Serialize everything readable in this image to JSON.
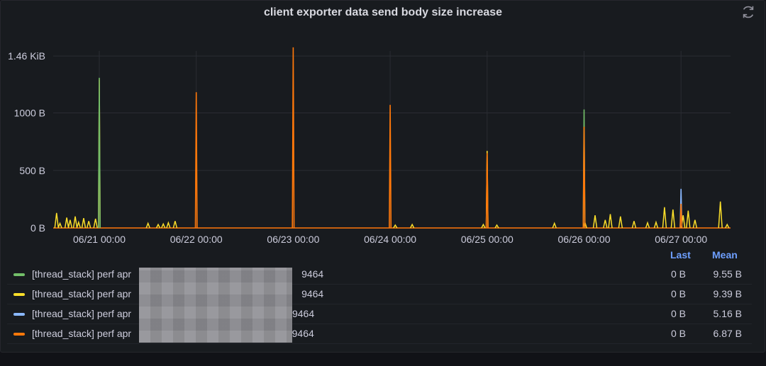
{
  "panel": {
    "title": "client exporter data send body size increase",
    "refresh_icon": "refresh-icon"
  },
  "chart_data": {
    "type": "line",
    "title": "client exporter data send body size increase",
    "xlabel": "",
    "ylabel": "",
    "x_tick_labels": [
      "06/21 00:00",
      "06/22 00:00",
      "06/23 00:00",
      "06/24 00:00",
      "06/25 00:00",
      "06/26 00:00",
      "06/27 00:00"
    ],
    "x_range": [
      "06/20 09:00",
      "06/27 16:00"
    ],
    "y_tick_labels": [
      "0 B",
      "500 B",
      "1000 B",
      "1.46 KiB"
    ],
    "y_tick_values": [
      0,
      500,
      1000,
      1495
    ],
    "ylim": [
      0,
      1600
    ],
    "grid": true,
    "legend_placement": "bottom",
    "series": [
      {
        "name": "[thread_stack] perf apr",
        "name_suffix": "9464",
        "color": "#73bf69",
        "points": [
          [
            0,
            0
          ],
          [
            15,
            1290
          ],
          [
            25,
            0
          ],
          [
            50,
            1030
          ],
          [
            60,
            0
          ]
        ],
        "x_positions_hours": [
          0,
          15.2,
          15.5,
          126.0,
          126.3,
          175
        ]
      },
      {
        "name": "[thread_stack] perf apr",
        "name_suffix": "9464",
        "color": "#fade2a",
        "x_positions_hours": [
          0,
          175
        ]
      },
      {
        "name": "[thread_stack] perf apr",
        "name_suffix": ":9464",
        "color": "#8ab8ff",
        "x_positions_hours": [
          0,
          175
        ]
      },
      {
        "name": "[thread_stack] perf apr",
        "name_suffix": "):9464",
        "color": "#ff780a",
        "x_positions_hours": [
          0,
          175
        ]
      }
    ],
    "spikes": [
      {
        "series": 3,
        "time": "06/21 00:00",
        "value": 1290
      },
      {
        "series": 0,
        "time": "06/21 00:00",
        "value": 1305
      },
      {
        "series": 3,
        "time": "06/22 00:00",
        "value": 1180
      },
      {
        "series": 3,
        "time": "06/23 00:00",
        "value": 1570
      },
      {
        "series": 3,
        "time": "06/24 00:00",
        "value": 1070
      },
      {
        "series": 1,
        "time": "06/25 00:00",
        "value": 670
      },
      {
        "series": 3,
        "time": "06/25 00:00",
        "value": 650
      },
      {
        "series": 0,
        "time": "06/26 00:00",
        "value": 1030
      },
      {
        "series": 3,
        "time": "06/26 00:00",
        "value": 880
      },
      {
        "series": 2,
        "time": "06/27 00:00",
        "value": 340
      },
      {
        "series": 3,
        "time": "06/27 00:00",
        "value": 210
      }
    ],
    "noise": [
      {
        "series": 1,
        "time_hours": 1.0,
        "value": 130
      },
      {
        "series": 1,
        "time_hours": 2.0,
        "value": 40
      },
      {
        "series": 1,
        "time_hours": 4.0,
        "value": 90
      },
      {
        "series": 1,
        "time_hours": 5.0,
        "value": 70
      },
      {
        "series": 1,
        "time_hours": 6.5,
        "value": 100
      },
      {
        "series": 1,
        "time_hours": 7.5,
        "value": 50
      },
      {
        "series": 1,
        "time_hours": 9.0,
        "value": 85
      },
      {
        "series": 1,
        "time_hours": 10.5,
        "value": 60
      },
      {
        "series": 1,
        "time_hours": 12.5,
        "value": 80
      },
      {
        "series": 1,
        "time_hours": 28.0,
        "value": 40
      },
      {
        "series": 1,
        "time_hours": 31.0,
        "value": 30
      },
      {
        "series": 1,
        "time_hours": 32.5,
        "value": 35
      },
      {
        "series": 1,
        "time_hours": 34.0,
        "value": 45
      },
      {
        "series": 1,
        "time_hours": 36.0,
        "value": 60
      },
      {
        "series": 1,
        "time_hours": 101.0,
        "value": 25
      },
      {
        "series": 1,
        "time_hours": 106.0,
        "value": 30
      },
      {
        "series": 1,
        "time_hours": 127.0,
        "value": 30
      },
      {
        "series": 1,
        "time_hours": 131.0,
        "value": 25
      },
      {
        "series": 1,
        "time_hours": 148.0,
        "value": 40
      },
      {
        "series": 1,
        "time_hours": 157.0,
        "value": 50
      },
      {
        "series": 1,
        "time_hours": 160.0,
        "value": 110
      },
      {
        "series": 1,
        "time_hours": 163.0,
        "value": 70
      },
      {
        "series": 1,
        "time_hours": 164.5,
        "value": 120
      },
      {
        "series": 1,
        "time_hours": 167.5,
        "value": 100
      },
      {
        "series": 1,
        "time_hours": 171.5,
        "value": 60
      },
      {
        "series": 1,
        "time_hours": 175.5,
        "value": 45
      },
      {
        "series": 1,
        "time_hours": 178.0,
        "value": 50
      },
      {
        "series": 1,
        "time_hours": 180.5,
        "value": 180
      },
      {
        "series": 1,
        "time_hours": 183.0,
        "value": 160
      },
      {
        "series": 1,
        "time_hours": 186.0,
        "value": 110
      },
      {
        "series": 1,
        "time_hours": 187.5,
        "value": 150
      },
      {
        "series": 1,
        "time_hours": 189.5,
        "value": 70
      },
      {
        "series": 1,
        "time_hours": 197.0,
        "value": 230
      },
      {
        "series": 1,
        "time_hours": 199.0,
        "value": 30
      }
    ]
  },
  "legend": {
    "headers": {
      "last": "Last",
      "mean": "Mean"
    },
    "rows": [
      {
        "color": "#73bf69",
        "name": "[thread_stack] perf apr",
        "suffix": "9464",
        "last": "0 B",
        "mean": "9.55 B"
      },
      {
        "color": "#fade2a",
        "name": "[thread_stack] perf apr",
        "suffix": "9464",
        "last": "0 B",
        "mean": "9.39 B"
      },
      {
        "color": "#8ab8ff",
        "name": "[thread_stack] perf apr",
        "suffix": ":9464",
        "last": "0 B",
        "mean": "5.16 B"
      },
      {
        "color": "#ff780a",
        "name": "[thread_stack] perf apr",
        "suffix": "):9464",
        "last": "0 B",
        "mean": "6.87 B"
      }
    ]
  }
}
